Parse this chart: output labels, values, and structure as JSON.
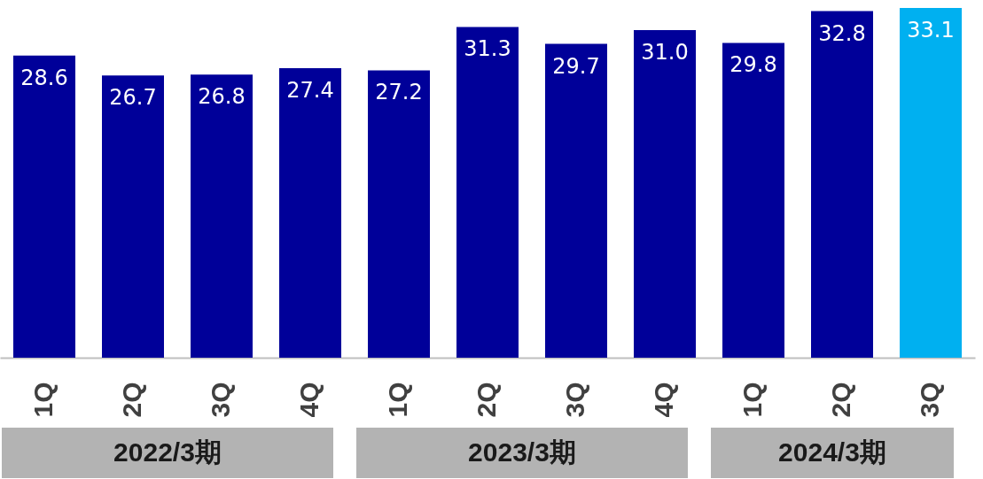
{
  "chart_data": {
    "type": "bar",
    "categories": [
      "1Q",
      "2Q",
      "3Q",
      "4Q",
      "1Q",
      "2Q",
      "3Q",
      "4Q",
      "1Q",
      "2Q",
      "3Q"
    ],
    "values": [
      28.6,
      26.7,
      26.8,
      27.4,
      27.2,
      31.3,
      29.7,
      31.0,
      29.8,
      32.8,
      33.1
    ],
    "value_labels": [
      "28.6",
      "26.7",
      "26.8",
      "27.4",
      "27.2",
      "31.3",
      "29.7",
      "31.0",
      "29.8",
      "32.8",
      "33.1"
    ],
    "colors": [
      "#000099",
      "#000099",
      "#000099",
      "#000099",
      "#000099",
      "#000099",
      "#000099",
      "#000099",
      "#000099",
      "#000099",
      "#00b0f0"
    ],
    "annotations": [
      "2022/3期",
      "2023/3期",
      "2024/3期"
    ]
  }
}
